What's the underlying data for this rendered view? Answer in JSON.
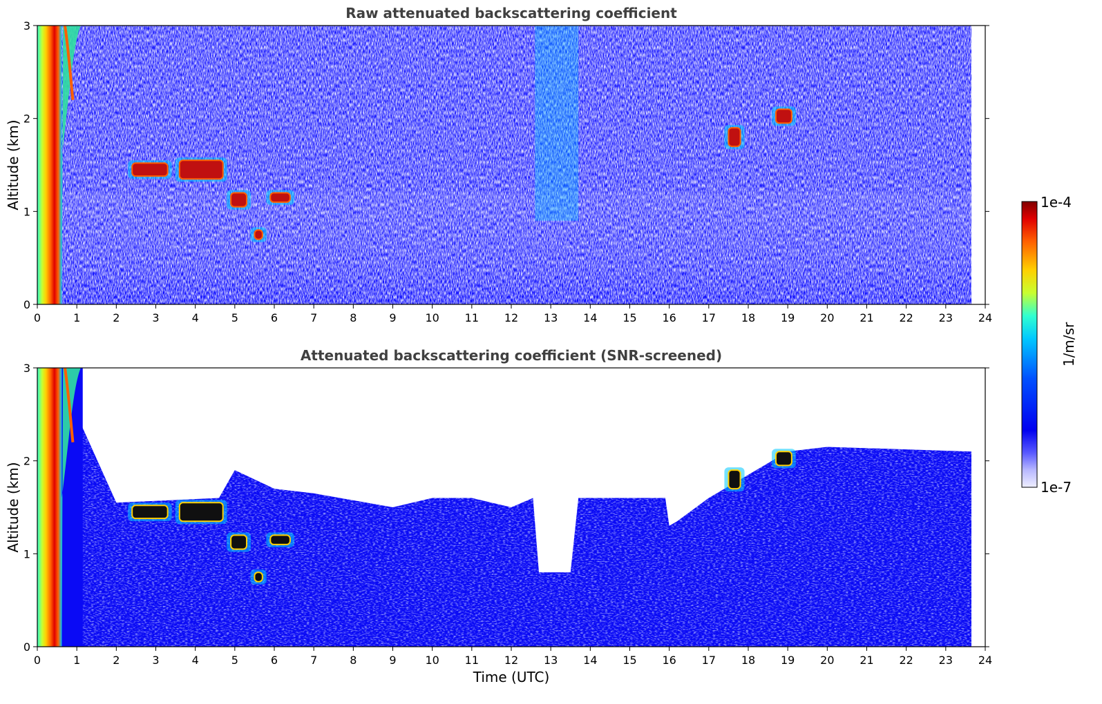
{
  "chart_data": [
    {
      "type": "heatmap",
      "title": "Raw attenuated backscattering coefficient",
      "xlabel": "",
      "ylabel": "Altitude (km)",
      "xlim": [
        0,
        24
      ],
      "ylim": [
        0,
        3
      ],
      "xticks": [
        "0",
        "1",
        "2",
        "3",
        "4",
        "5",
        "6",
        "7",
        "8",
        "9",
        "10",
        "11",
        "12",
        "13",
        "14",
        "15",
        "16",
        "17",
        "18",
        "19",
        "20",
        "21",
        "22",
        "23",
        "24"
      ],
      "yticks": [
        "0",
        "1",
        "2",
        "3"
      ],
      "data_end_hour": 23.65,
      "screened": false,
      "features": [
        {
          "feature": "low-altitude strong return",
          "time_range_h": [
            0.0,
            0.65
          ],
          "altitude_km": [
            0.0,
            3.0
          ]
        },
        {
          "feature": "aerosol plume",
          "time_range_h": [
            0.65,
            1.1
          ],
          "altitude_km": [
            1.5,
            3.0
          ]
        },
        {
          "feature": "cloud layer",
          "time_range_h": [
            2.4,
            3.3
          ],
          "altitude_km": [
            1.38,
            1.52
          ]
        },
        {
          "feature": "cloud layer",
          "time_range_h": [
            3.6,
            4.7
          ],
          "altitude_km": [
            1.35,
            1.55
          ]
        },
        {
          "feature": "cloud layer",
          "time_range_h": [
            4.9,
            5.3
          ],
          "altitude_km": [
            1.05,
            1.2
          ]
        },
        {
          "feature": "cloud layer",
          "time_range_h": [
            5.9,
            6.4
          ],
          "altitude_km": [
            1.1,
            1.2
          ]
        },
        {
          "feature": "cloud layer",
          "time_range_h": [
            5.5,
            5.7
          ],
          "altitude_km": [
            0.7,
            0.8
          ]
        },
        {
          "feature": "cloud layer",
          "time_range_h": [
            17.5,
            17.8
          ],
          "altitude_km": [
            1.7,
            1.9
          ]
        },
        {
          "feature": "cloud layer",
          "time_range_h": [
            18.7,
            19.1
          ],
          "altitude_km": [
            1.95,
            2.1
          ]
        }
      ]
    },
    {
      "type": "heatmap",
      "title": "Attenuated backscattering coefficient (SNR-screened)",
      "xlabel": "Time (UTC)",
      "ylabel": "Altitude (km)",
      "xlim": [
        0,
        24
      ],
      "ylim": [
        0,
        3
      ],
      "xticks": [
        "0",
        "1",
        "2",
        "3",
        "4",
        "5",
        "6",
        "7",
        "8",
        "9",
        "10",
        "11",
        "12",
        "13",
        "14",
        "15",
        "16",
        "17",
        "18",
        "19",
        "20",
        "21",
        "22",
        "23",
        "24"
      ],
      "yticks": [
        "0",
        "1",
        "2",
        "3"
      ],
      "data_end_hour": 23.65,
      "screened": true,
      "screen_top_km": [
        [
          1.1,
          2.4
        ],
        [
          2.0,
          1.55
        ],
        [
          4.6,
          1.6
        ],
        [
          5.0,
          1.9
        ],
        [
          6.0,
          1.7
        ],
        [
          7.0,
          1.65
        ],
        [
          9.0,
          1.5
        ],
        [
          10.0,
          1.6
        ],
        [
          11.0,
          1.6
        ],
        [
          12.0,
          1.5
        ],
        [
          12.55,
          1.6
        ],
        [
          12.7,
          0.8
        ],
        [
          13.5,
          0.8
        ],
        [
          13.7,
          1.6
        ],
        [
          15.5,
          1.6
        ],
        [
          15.9,
          1.6
        ],
        [
          16.0,
          1.3
        ],
        [
          16.2,
          1.35
        ],
        [
          17.0,
          1.6
        ],
        [
          18.0,
          1.85
        ],
        [
          19.0,
          2.1
        ],
        [
          20.0,
          2.15
        ],
        [
          23.65,
          2.1
        ]
      ]
    }
  ],
  "colorbar": {
    "label": "1/m/sr",
    "max_label": "1e-4",
    "min_label": "1e-7",
    "scale": "log",
    "colors": [
      "#eeeeff",
      "#b8b8ff",
      "#5a5aff",
      "#0000f0",
      "#0050ff",
      "#00c8ff",
      "#30ffd0",
      "#c8ff30",
      "#ffd000",
      "#ff6000",
      "#e00000",
      "#800000"
    ]
  }
}
